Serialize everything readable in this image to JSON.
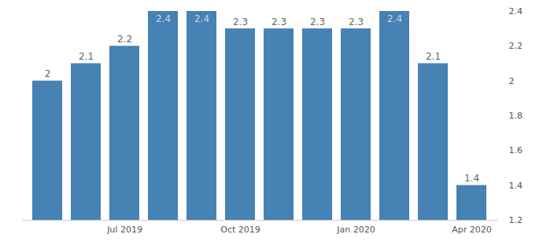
{
  "chart_data": {
    "type": "bar",
    "categories": [
      null,
      null,
      "Jul 2019",
      null,
      null,
      "Oct 2019",
      null,
      null,
      "Jan 2020",
      null,
      null,
      "Apr 2020"
    ],
    "values": [
      2,
      2.1,
      2.2,
      2.4,
      2.4,
      2.3,
      2.3,
      2.3,
      2.3,
      2.4,
      2.1,
      1.4
    ],
    "color": "#4682b4",
    "ylim": [
      1.2,
      2.4
    ],
    "yticks": [
      1.2,
      1.4,
      1.6,
      1.8,
      2,
      2.2,
      2.4
    ],
    "grid": false,
    "data_labels": true
  }
}
